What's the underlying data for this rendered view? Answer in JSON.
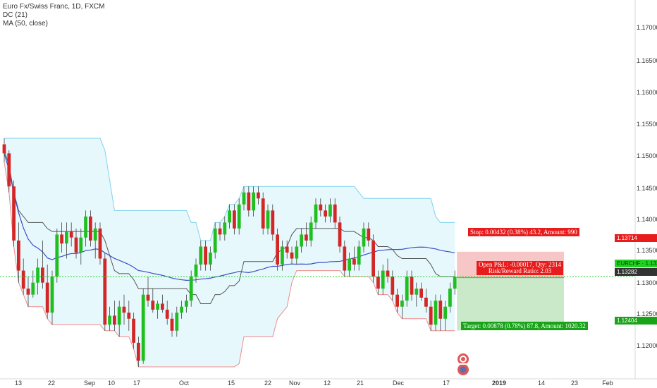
{
  "legend": {
    "symbol_line": "Euro Fx/Swiss Franc, 1D, FXCM",
    "indicator_1": "DC (21)",
    "indicator_2": "MA (50, close)"
  },
  "y_axis": {
    "labels": [
      "1.17000",
      "1.16500",
      "1.16000",
      "1.15500",
      "1.15000",
      "1.14500",
      "1.14000",
      "1.13500",
      "1.13000",
      "1.12500",
      "1.12000"
    ]
  },
  "x_axis": {
    "labels": [
      {
        "text": "13",
        "bold": false
      },
      {
        "text": "22",
        "bold": false
      },
      {
        "text": "Sep",
        "bold": false
      },
      {
        "text": "10",
        "bold": false
      },
      {
        "text": "17",
        "bold": false
      },
      {
        "text": "Oct",
        "bold": false
      },
      {
        "text": "15",
        "bold": false
      },
      {
        "text": "22",
        "bold": false
      },
      {
        "text": "Nov",
        "bold": false
      },
      {
        "text": "12",
        "bold": false
      },
      {
        "text": "21",
        "bold": false
      },
      {
        "text": "Dec",
        "bold": false
      },
      {
        "text": "17",
        "bold": false
      },
      {
        "text": "2019",
        "bold": true
      },
      {
        "text": "14",
        "bold": false
      },
      {
        "text": "23",
        "bold": false
      },
      {
        "text": "Feb",
        "bold": false
      }
    ]
  },
  "price_tags": {
    "stop": "1.13714",
    "current_symbol": "EURCHF · 1.13299",
    "current": "1.13282",
    "target": "1.12404"
  },
  "position": {
    "stop_label": "Stop: 0.00432 (0.38%) 43.2, Amount: 990",
    "pl_label": "Open P&L: -0.00017, Qty: 2314",
    "rr_label": "Risk/Reward Ratio: 2.03",
    "target_label": "Target: 0.00878 (0.78%) 87.8, Amount: 1020.32"
  },
  "colors": {
    "up": "#1fbf1f",
    "down": "#d32626",
    "ma": "#3a4ec8",
    "dc_mid": "#555555",
    "dc_upper": "#7fd2ee",
    "dc_lower": "#f08a8a",
    "dc_fill": "#e7f8fc",
    "stop_zone": "#f7c6c6",
    "target_zone": "#c9e9c9",
    "stop_tag": "#e81c1c",
    "target_tag": "#19a319",
    "current_tag": "#22d022"
  },
  "chart_data": {
    "type": "candlestick",
    "symbol": "EURCHF",
    "interval": "1D",
    "ylim": [
      1.116,
      1.179
    ],
    "indicators": [
      "DC (21)",
      "MA (50, close)"
    ],
    "candles": [
      [
        1.155,
        1.156,
        1.152,
        1.1535
      ],
      [
        1.1535,
        1.154,
        1.147,
        1.148
      ],
      [
        1.148,
        1.149,
        1.138,
        1.139
      ],
      [
        1.139,
        1.142,
        1.132,
        1.134
      ],
      [
        1.134,
        1.136,
        1.13,
        1.131
      ],
      [
        1.131,
        1.133,
        1.128,
        1.13
      ],
      [
        1.13,
        1.134,
        1.1295,
        1.132
      ],
      [
        1.132,
        1.136,
        1.13,
        1.1345
      ],
      [
        1.1345,
        1.139,
        1.131,
        1.132
      ],
      [
        1.132,
        1.135,
        1.126,
        1.127
      ],
      [
        1.127,
        1.134,
        1.125,
        1.133
      ],
      [
        1.133,
        1.141,
        1.132,
        1.14
      ],
      [
        1.14,
        1.142,
        1.137,
        1.1385
      ],
      [
        1.1385,
        1.142,
        1.136,
        1.1405
      ],
      [
        1.1405,
        1.142,
        1.138,
        1.1395
      ],
      [
        1.1395,
        1.141,
        1.136,
        1.137
      ],
      [
        1.137,
        1.141,
        1.135,
        1.1395
      ],
      [
        1.1395,
        1.144,
        1.138,
        1.143
      ],
      [
        1.143,
        1.144,
        1.138,
        1.139
      ],
      [
        1.139,
        1.142,
        1.136,
        1.141
      ],
      [
        1.141,
        1.142,
        1.135,
        1.136
      ],
      [
        1.136,
        1.137,
        1.124,
        1.125
      ],
      [
        1.125,
        1.128,
        1.124,
        1.1265
      ],
      [
        1.1265,
        1.129,
        1.124,
        1.125
      ],
      [
        1.125,
        1.129,
        1.123,
        1.128
      ],
      [
        1.128,
        1.13,
        1.125,
        1.127
      ],
      [
        1.127,
        1.129,
        1.124,
        1.126
      ],
      [
        1.126,
        1.127,
        1.121,
        1.122
      ],
      [
        1.122,
        1.123,
        1.118,
        1.119
      ],
      [
        1.119,
        1.131,
        1.1185,
        1.13
      ],
      [
        1.13,
        1.133,
        1.128,
        1.129
      ],
      [
        1.129,
        1.131,
        1.127,
        1.1275
      ],
      [
        1.1275,
        1.129,
        1.126,
        1.1285
      ],
      [
        1.1285,
        1.13,
        1.127,
        1.1275
      ],
      [
        1.1275,
        1.129,
        1.125,
        1.126
      ],
      [
        1.126,
        1.127,
        1.123,
        1.124
      ],
      [
        1.124,
        1.128,
        1.123,
        1.127
      ],
      [
        1.127,
        1.129,
        1.126,
        1.128
      ],
      [
        1.128,
        1.13,
        1.127,
        1.129
      ],
      [
        1.129,
        1.134,
        1.128,
        1.133
      ],
      [
        1.133,
        1.136,
        1.132,
        1.135
      ],
      [
        1.135,
        1.139,
        1.134,
        1.138
      ],
      [
        1.138,
        1.139,
        1.134,
        1.135
      ],
      [
        1.135,
        1.138,
        1.134,
        1.137
      ],
      [
        1.137,
        1.142,
        1.136,
        1.141
      ],
      [
        1.141,
        1.142,
        1.139,
        1.14
      ],
      [
        1.14,
        1.143,
        1.139,
        1.142
      ],
      [
        1.142,
        1.145,
        1.141,
        1.144
      ],
      [
        1.144,
        1.145,
        1.14,
        1.141
      ],
      [
        1.141,
        1.146,
        1.14,
        1.145
      ],
      [
        1.145,
        1.148,
        1.144,
        1.147
      ],
      [
        1.147,
        1.148,
        1.143,
        1.144
      ],
      [
        1.144,
        1.148,
        1.143,
        1.147
      ],
      [
        1.147,
        1.148,
        1.145,
        1.146
      ],
      [
        1.146,
        1.147,
        1.14,
        1.141
      ],
      [
        1.141,
        1.145,
        1.14,
        1.144
      ],
      [
        1.144,
        1.145,
        1.139,
        1.14
      ],
      [
        1.14,
        1.141,
        1.134,
        1.135
      ],
      [
        1.135,
        1.139,
        1.134,
        1.138
      ],
      [
        1.138,
        1.139,
        1.136,
        1.137
      ],
      [
        1.137,
        1.138,
        1.135,
        1.136
      ],
      [
        1.136,
        1.139,
        1.135,
        1.138
      ],
      [
        1.138,
        1.141,
        1.137,
        1.14
      ],
      [
        1.14,
        1.142,
        1.138,
        1.139
      ],
      [
        1.139,
        1.143,
        1.138,
        1.142
      ],
      [
        1.142,
        1.146,
        1.141,
        1.145
      ],
      [
        1.145,
        1.146,
        1.143,
        1.144
      ],
      [
        1.144,
        1.145,
        1.142,
        1.143
      ],
      [
        1.143,
        1.146,
        1.142,
        1.145
      ],
      [
        1.145,
        1.146,
        1.141,
        1.142
      ],
      [
        1.142,
        1.143,
        1.137,
        1.138
      ],
      [
        1.138,
        1.139,
        1.133,
        1.134
      ],
      [
        1.134,
        1.137,
        1.133,
        1.136
      ],
      [
        1.136,
        1.138,
        1.134,
        1.135
      ],
      [
        1.135,
        1.139,
        1.134,
        1.138
      ],
      [
        1.138,
        1.142,
        1.137,
        1.141
      ],
      [
        1.141,
        1.142,
        1.138,
        1.139
      ],
      [
        1.139,
        1.14,
        1.132,
        1.133
      ],
      [
        1.133,
        1.134,
        1.13,
        1.131
      ],
      [
        1.131,
        1.135,
        1.13,
        1.134
      ],
      [
        1.134,
        1.136,
        1.132,
        1.133
      ],
      [
        1.133,
        1.134,
        1.129,
        1.13
      ],
      [
        1.13,
        1.131,
        1.127,
        1.128
      ],
      [
        1.128,
        1.13,
        1.126,
        1.129
      ],
      [
        1.129,
        1.134,
        1.128,
        1.133
      ],
      [
        1.133,
        1.134,
        1.129,
        1.13
      ],
      [
        1.13,
        1.132,
        1.128,
        1.131
      ],
      [
        1.131,
        1.132,
        1.129,
        1.1295
      ],
      [
        1.1295,
        1.131,
        1.127,
        1.128
      ],
      [
        1.128,
        1.129,
        1.124,
        1.125
      ],
      [
        1.125,
        1.13,
        1.124,
        1.129
      ],
      [
        1.129,
        1.13,
        1.124,
        1.126
      ],
      [
        1.126,
        1.129,
        1.124,
        1.128
      ],
      [
        1.128,
        1.132,
        1.127,
        1.131
      ],
      [
        1.131,
        1.134,
        1.13,
        1.133
      ]
    ],
    "position": {
      "entry": 1.13282,
      "stop": 1.13714,
      "target": 1.12404
    }
  }
}
